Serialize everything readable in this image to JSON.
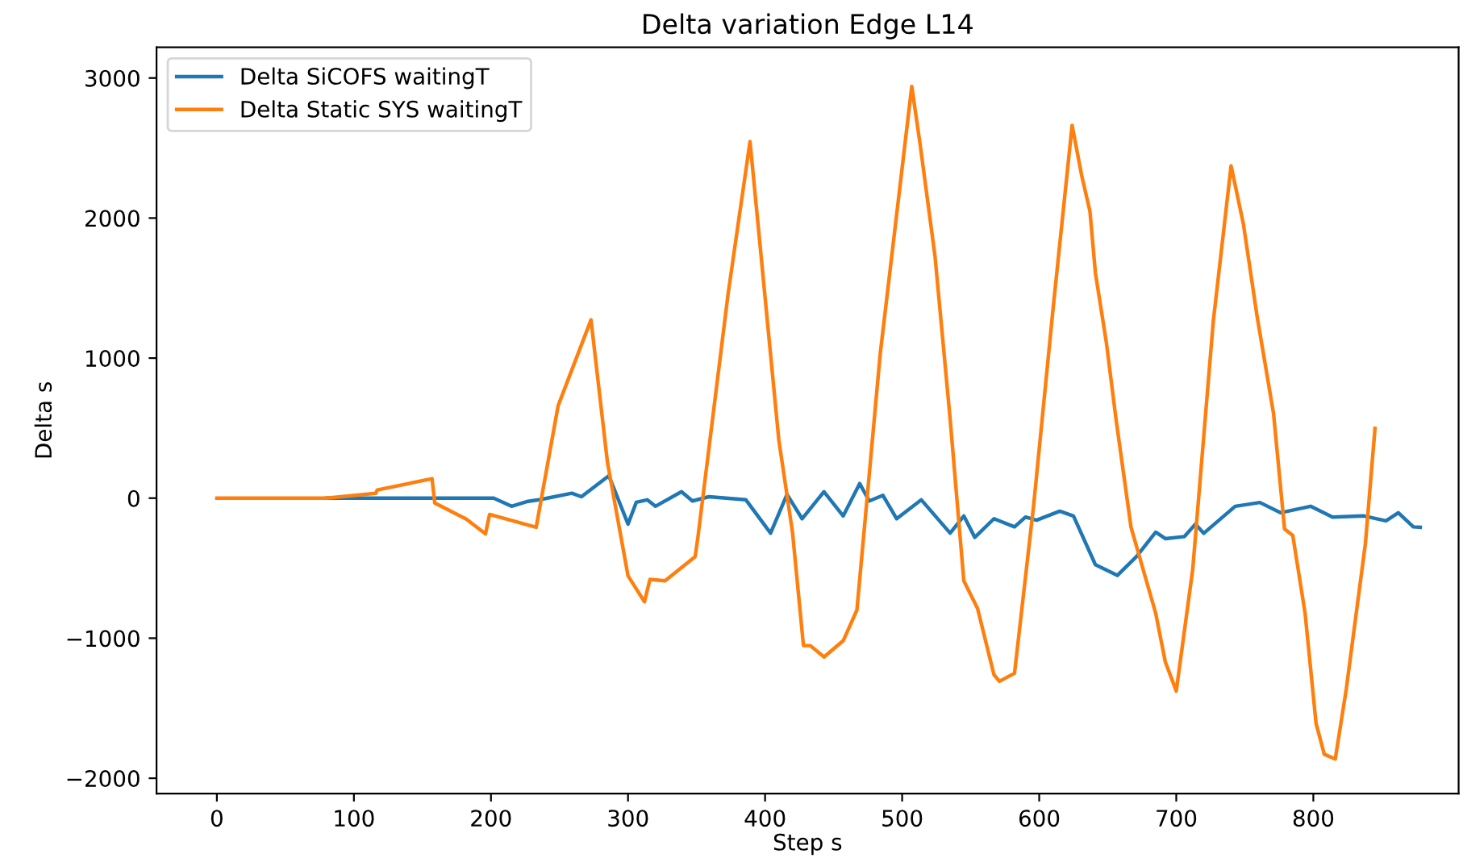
{
  "chart_data": {
    "type": "line",
    "title": "Delta variation Edge L14",
    "xlabel": "Step s",
    "ylabel": "Delta s",
    "xlim": [
      -44,
      906
    ],
    "ylim": [
      -2110,
      3220
    ],
    "xticks": [
      0,
      100,
      200,
      300,
      400,
      500,
      600,
      700,
      800
    ],
    "yticks": [
      -2000,
      -1000,
      0,
      1000,
      2000,
      3000
    ],
    "grid": false,
    "legend": "top left",
    "series": [
      {
        "name": "Delta SiCOFS waitingT",
        "color": "#1f77b4",
        "x": [
          80,
          202,
          215,
          227,
          236,
          259,
          266,
          286,
          300,
          306,
          314,
          320,
          339,
          347,
          359,
          386,
          404,
          416,
          427,
          443,
          457,
          469,
          476,
          486,
          496,
          514,
          535,
          545,
          553,
          567,
          582,
          590,
          598,
          615,
          625,
          641,
          657,
          671,
          685,
          692,
          706,
          714,
          720,
          743,
          761,
          776,
          798,
          814,
          837,
          853,
          862,
          873,
          878
        ],
        "values": [
          0,
          0,
          -58,
          -23,
          -10,
          35,
          10,
          160,
          -185,
          -30,
          -12,
          -58,
          46,
          -20,
          10,
          -12,
          -250,
          27,
          -147,
          46,
          -127,
          104,
          -20,
          20,
          -147,
          -12,
          -250,
          -127,
          -280,
          -147,
          -205,
          -135,
          -158,
          -93,
          -127,
          -475,
          -552,
          -417,
          -243,
          -289,
          -274,
          -185,
          -251,
          -58,
          -31,
          -104,
          -58,
          -135,
          -127,
          -162,
          -104,
          -205,
          -208
        ]
      },
      {
        "name": "Delta Static SYS waitingT",
        "color": "#ff7f0e",
        "x": [
          0,
          80,
          116,
          117,
          157,
          159,
          182,
          196,
          199,
          233,
          249,
          273,
          285,
          300,
          312,
          316,
          327,
          349,
          351,
          373,
          389,
          396,
          410,
          420,
          428,
          433,
          443,
          457,
          467,
          484,
          507,
          513,
          524,
          535,
          545,
          555,
          567,
          571,
          582,
          596,
          610,
          624,
          631,
          637,
          641,
          649,
          656,
          667,
          685,
          692,
          700,
          712,
          727,
          740,
          749,
          759,
          771,
          779,
          785,
          794,
          802,
          808,
          816,
          824,
          838,
          845
        ],
        "values": [
          0,
          0,
          35,
          58,
          139,
          -35,
          -150,
          -255,
          -116,
          -208,
          660,
          1273,
          255,
          -555,
          -740,
          -580,
          -590,
          -417,
          -278,
          1458,
          2546,
          1840,
          417,
          -243,
          -1053,
          -1053,
          -1134,
          -1018,
          -799,
          1030,
          2940,
          2535,
          1725,
          567,
          -590,
          -787,
          -1261,
          -1308,
          -1250,
          -46,
          1342,
          2662,
          2303,
          2049,
          1609,
          1111,
          567,
          -208,
          -822,
          -1169,
          -1377,
          -509,
          1262,
          2373,
          1956,
          1296,
          602,
          -220,
          -266,
          -822,
          -1609,
          -1829,
          -1863,
          -1366,
          -324,
          498
        ]
      }
    ]
  }
}
